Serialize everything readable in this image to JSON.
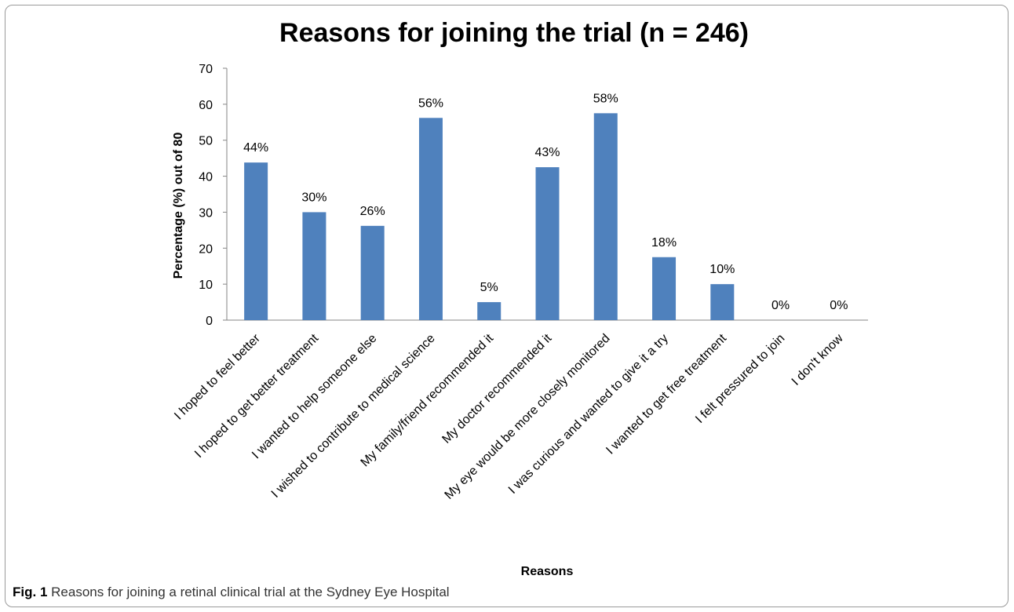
{
  "chart_data": {
    "type": "bar",
    "title": "Reasons for joining the trial (n = 246)",
    "xlabel": "Reasons",
    "ylabel": "Percentage (%) out of 80",
    "ylim": [
      0,
      70
    ],
    "yticks": [
      0,
      10,
      20,
      30,
      40,
      50,
      60,
      70
    ],
    "grid": false,
    "legend": "none",
    "bar_color": "#4f81bd",
    "categories": [
      "I hoped to feel better",
      "I hoped to get better treatment",
      "I wanted to help someone else",
      "I wished to contribute to medical science",
      "My family/friend recommended it",
      "My doctor recommended it",
      "My eye would be more closely monitored",
      "I was curious and wanted to give it a try",
      "I wanted to get free treatment",
      "I felt pressured to join",
      "I don't know"
    ],
    "values": [
      43.8,
      30,
      26.2,
      56.2,
      5,
      42.5,
      57.5,
      17.5,
      10,
      0,
      0
    ],
    "data_labels": [
      "44%",
      "30%",
      "26%",
      "56%",
      "5%",
      "43%",
      "58%",
      "18%",
      "10%",
      "0%",
      "0%"
    ]
  },
  "caption": {
    "label": "Fig. 1",
    "text": "Reasons for joining a retinal clinical trial at the Sydney Eye Hospital"
  }
}
